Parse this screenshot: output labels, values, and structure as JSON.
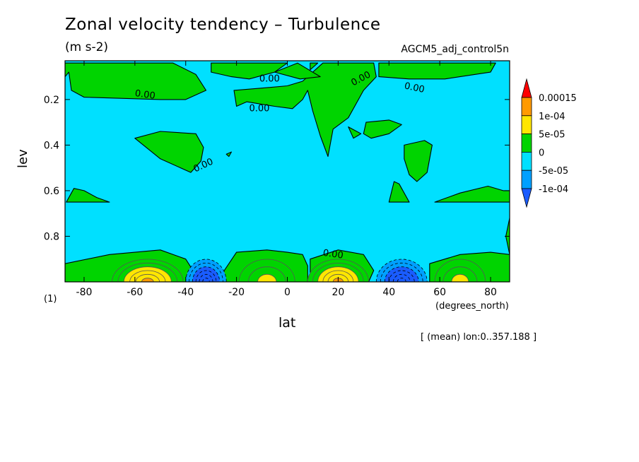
{
  "title": "Zonal velocity tendency – Turbulence",
  "units": "(m s-2)",
  "dataset": "AGCM5_adj_control5n",
  "xlabel": "lat",
  "ylabel": "lev",
  "x_unit": "(degrees_north)",
  "level_note": "(1)",
  "footnote": "[ (mean) lon:0..357.188 ]",
  "chart_data": {
    "type": "heatmap",
    "plot_style": "filled contour",
    "xlim": [
      -87.5,
      87.5
    ],
    "ylim": [
      1.0,
      0.03
    ],
    "x_ticks": [
      {
        "v": -80,
        "label": "-80"
      },
      {
        "v": -60,
        "label": "-60"
      },
      {
        "v": -40,
        "label": "-40"
      },
      {
        "v": -20,
        "label": "-20"
      },
      {
        "v": 0,
        "label": "0"
      },
      {
        "v": 20,
        "label": "20"
      },
      {
        "v": 40,
        "label": "40"
      },
      {
        "v": 60,
        "label": "60"
      },
      {
        "v": 80,
        "label": "80"
      }
    ],
    "y_ticks": [
      {
        "v": 0.2,
        "label": "0.2"
      },
      {
        "v": 0.4,
        "label": "0.4"
      },
      {
        "v": 0.6,
        "label": "0.6"
      },
      {
        "v": 0.8,
        "label": "0.8"
      }
    ],
    "background": {
      "range": [
        -5e-05,
        0
      ],
      "color": "#00e0ff"
    },
    "regions_positive": [
      [
        [
          -87.5,
          0.92
        ],
        [
          -70,
          0.88
        ],
        [
          -50,
          0.86
        ],
        [
          -40,
          0.9
        ],
        [
          -36,
          0.97
        ],
        [
          -40,
          1.0
        ],
        [
          -87.5,
          1.0
        ]
      ],
      [
        [
          -26,
          0.97
        ],
        [
          -20,
          0.87
        ],
        [
          -8,
          0.86
        ],
        [
          0,
          0.87
        ],
        [
          6,
          0.88
        ],
        [
          8,
          0.93
        ],
        [
          8,
          1.0
        ],
        [
          -26,
          1.0
        ]
      ],
      [
        [
          9,
          1.0
        ],
        [
          9,
          0.9
        ],
        [
          20,
          0.86
        ],
        [
          30,
          0.88
        ],
        [
          34,
          0.95
        ],
        [
          32,
          1.0
        ]
      ],
      [
        [
          56,
          1.0
        ],
        [
          56,
          0.92
        ],
        [
          68,
          0.88
        ],
        [
          80,
          0.87
        ],
        [
          87.5,
          0.88
        ],
        [
          87.5,
          1.0
        ]
      ],
      [
        [
          -87.5,
          0.1
        ],
        [
          -86,
          0.08
        ],
        [
          -85,
          0.16
        ],
        [
          -80,
          0.19
        ],
        [
          -50,
          0.2
        ],
        [
          -40,
          0.2
        ],
        [
          -32,
          0.16
        ],
        [
          -36,
          0.09
        ],
        [
          -45,
          0.04
        ],
        [
          -87.5,
          0.04
        ]
      ],
      [
        [
          -30,
          0.04
        ],
        [
          -30,
          0.08
        ],
        [
          -22,
          0.1
        ],
        [
          -15,
          0.11
        ],
        [
          -5,
          0.08
        ],
        [
          0,
          0.04
        ]
      ],
      [
        [
          9,
          0.04
        ],
        [
          9,
          0.07
        ],
        [
          12,
          0.04
        ]
      ],
      [
        [
          -21,
          0.16
        ],
        [
          -20,
          0.23
        ],
        [
          -16,
          0.21
        ],
        [
          -5,
          0.23
        ],
        [
          2,
          0.24
        ],
        [
          6,
          0.2
        ],
        [
          8,
          0.16
        ],
        [
          10,
          0.25
        ],
        [
          13,
          0.36
        ],
        [
          16,
          0.45
        ],
        [
          18,
          0.33
        ],
        [
          24,
          0.28
        ],
        [
          30,
          0.16
        ],
        [
          35,
          0.1
        ],
        [
          34,
          0.04
        ],
        [
          14,
          0.04
        ],
        [
          6,
          0.12
        ],
        [
          0,
          0.14
        ],
        [
          -10,
          0.15
        ]
      ],
      [
        [
          -5,
          0.08
        ],
        [
          4,
          0.04
        ],
        [
          13,
          0.1
        ],
        [
          5,
          0.11
        ]
      ],
      [
        [
          36,
          0.1
        ],
        [
          48,
          0.11
        ],
        [
          62,
          0.11
        ],
        [
          80,
          0.08
        ],
        [
          82,
          0.04
        ],
        [
          36,
          0.04
        ]
      ],
      [
        [
          -84,
          0.59
        ],
        [
          -80,
          0.6
        ],
        [
          -75,
          0.63
        ],
        [
          -70,
          0.65
        ],
        [
          -87,
          0.65
        ]
      ],
      [
        [
          -60,
          0.37
        ],
        [
          -50,
          0.34
        ],
        [
          -36,
          0.35
        ],
        [
          -33,
          0.41
        ],
        [
          -34,
          0.47
        ],
        [
          -38,
          0.52
        ],
        [
          -50,
          0.46
        ]
      ],
      [
        [
          31,
          0.3
        ],
        [
          40,
          0.29
        ],
        [
          45,
          0.31
        ],
        [
          40,
          0.35
        ],
        [
          33,
          0.37
        ],
        [
          30,
          0.35
        ]
      ],
      [
        [
          42,
          0.56
        ],
        [
          44,
          0.57
        ],
        [
          48,
          0.65
        ],
        [
          40,
          0.65
        ]
      ],
      [
        [
          58,
          0.65
        ],
        [
          68,
          0.61
        ],
        [
          79,
          0.58
        ],
        [
          85,
          0.6
        ],
        [
          87.5,
          0.6
        ],
        [
          87.5,
          0.65
        ]
      ],
      [
        [
          46,
          0.4
        ],
        [
          54,
          0.38
        ],
        [
          57,
          0.4
        ],
        [
          55,
          0.52
        ],
        [
          51,
          0.56
        ],
        [
          48,
          0.53
        ],
        [
          46,
          0.46
        ]
      ],
      [
        [
          24,
          0.32
        ],
        [
          29,
          0.35
        ],
        [
          26,
          0.37
        ]
      ],
      [
        [
          86,
          0.8
        ],
        [
          87.5,
          0.72
        ],
        [
          87.5,
          0.88
        ]
      ],
      [
        [
          -24,
          0.44
        ],
        [
          -22,
          0.43
        ],
        [
          -23,
          0.45
        ]
      ]
    ],
    "contour_labels": [
      {
        "lat": -56,
        "lev": 0.18,
        "text": "0.00",
        "angle": 8
      },
      {
        "lat": -7,
        "lev": 0.11,
        "text": "0.00",
        "angle": 0
      },
      {
        "lat": -11,
        "lev": 0.24,
        "text": "0.00",
        "angle": 0
      },
      {
        "lat": 29,
        "lev": 0.11,
        "text": "0.00",
        "angle": -28
      },
      {
        "lat": 50,
        "lev": 0.15,
        "text": "0.00",
        "angle": 12
      },
      {
        "lat": -33,
        "lev": 0.49,
        "text": "0.00",
        "angle": -25
      },
      {
        "lat": 18,
        "lev": 0.88,
        "text": "0.00",
        "angle": 8
      }
    ],
    "surface_extrema": [
      {
        "lat": -55,
        "width": 28,
        "peak": 0.00011
      },
      {
        "lat": -32,
        "width": 16,
        "peak": -0.00011
      },
      {
        "lat": -8,
        "width": 22,
        "peak": 6e-05
      },
      {
        "lat": 20,
        "width": 24,
        "peak": 0.00013
      },
      {
        "lat": 45,
        "width": 20,
        "peak": -0.00011
      },
      {
        "lat": 68,
        "width": 20,
        "peak": 6e-05
      }
    ],
    "colorbar": {
      "under_color": "#1a5cff",
      "over_color": "#ff0000",
      "levels": [
        {
          "label": "0.00015",
          "color": "#ff9a00"
        },
        {
          "label": "1e-04",
          "color": "#ffe600"
        },
        {
          "label": "5e-05",
          "color": "#00d400"
        },
        {
          "label": "0",
          "color": "#00e0ff"
        },
        {
          "label": "-5e-05",
          "color": "#00a0ff"
        },
        {
          "label": "-1e-04",
          "color": ""
        }
      ]
    },
    "level_colors": {
      "neg_2": "#1a5cff",
      "neg_1": "#00a0ff",
      "pos_1": "#00d400",
      "pos_2": "#ffe600",
      "pos_3": "#ff9a00",
      "pos_4": "#ff0000"
    }
  }
}
